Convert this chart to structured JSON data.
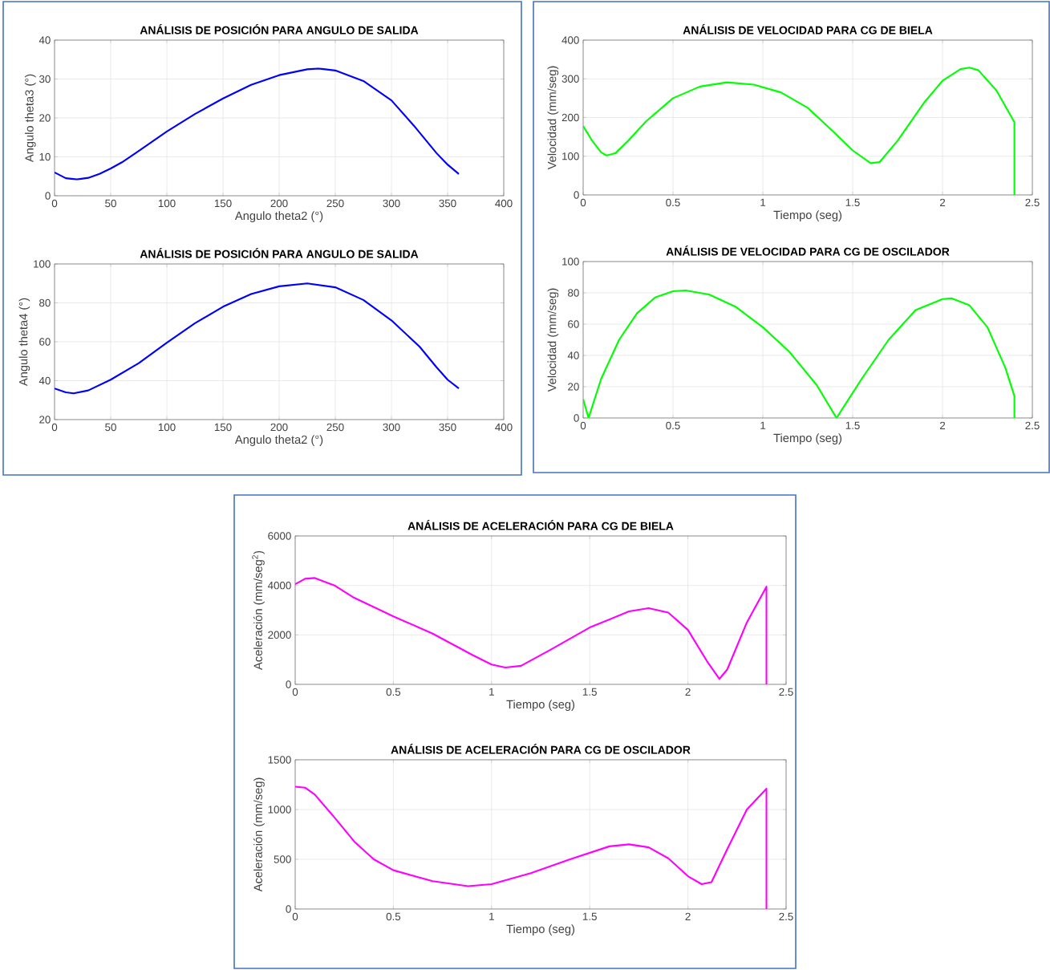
{
  "chart_data": [
    {
      "type": "line",
      "title": "ANÁLISIS DE POSICIÓN PARA ANGULO DE SALIDA",
      "xlabel": "Angulo theta2 (°)",
      "ylabel": "Angulo theta3 (°)",
      "xlim": [
        0,
        400
      ],
      "ylim": [
        0,
        40
      ],
      "xticks": [
        0,
        50,
        100,
        150,
        200,
        250,
        300,
        350,
        400
      ],
      "yticks": [
        0,
        10,
        20,
        30,
        40
      ],
      "grid": true,
      "x": [
        0,
        10,
        20,
        30,
        40,
        50,
        60,
        75,
        100,
        125,
        150,
        175,
        200,
        225,
        235,
        250,
        275,
        300,
        320,
        340,
        350,
        360
      ],
      "series": [
        {
          "color": "#0000ff",
          "values": [
            6,
            4.5,
            4.2,
            4.6,
            5.6,
            7,
            8.6,
            11.5,
            16.5,
            21,
            25,
            28.5,
            31,
            32.5,
            32.7,
            32.2,
            29.5,
            24.5,
            18,
            11,
            8,
            5.6
          ]
        }
      ]
    },
    {
      "type": "line",
      "title": "ANÁLISIS DE POSICIÓN PARA ANGULO DE SALIDA",
      "xlabel": "Angulo theta2 (°)",
      "ylabel": "Angulo theta4 (°)",
      "xlim": [
        0,
        400
      ],
      "ylim": [
        20,
        100
      ],
      "xticks": [
        0,
        50,
        100,
        150,
        200,
        250,
        300,
        350,
        400
      ],
      "yticks": [
        20,
        40,
        60,
        80,
        100
      ],
      "grid": true,
      "x": [
        0,
        10,
        17,
        30,
        50,
        75,
        100,
        125,
        150,
        175,
        200,
        225,
        250,
        275,
        300,
        325,
        340,
        350,
        360
      ],
      "series": [
        {
          "color": "#0000ff",
          "values": [
            36,
            34,
            33.5,
            35,
            40.5,
            49,
            59.5,
            69.5,
            78,
            84.5,
            88.5,
            90,
            88,
            81.5,
            71,
            57.5,
            47,
            40.5,
            36
          ]
        }
      ]
    },
    {
      "type": "line",
      "title": "ANÁLISIS DE VELOCIDAD PARA CG DE BIELA",
      "xlabel": "Tiempo (seg)",
      "ylabel": "Velocidad (mm/seg)",
      "xlim": [
        0,
        2.5
      ],
      "ylim": [
        0,
        400
      ],
      "xticks": [
        0,
        0.5,
        1,
        1.5,
        2,
        2.5
      ],
      "yticks": [
        0,
        100,
        200,
        300,
        400
      ],
      "grid": true,
      "x": [
        0,
        0.05,
        0.1,
        0.13,
        0.18,
        0.25,
        0.35,
        0.5,
        0.65,
        0.8,
        0.95,
        1.1,
        1.25,
        1.4,
        1.5,
        1.6,
        1.65,
        1.75,
        1.9,
        2.0,
        2.1,
        2.15,
        2.2,
        2.3,
        2.4,
        2.4
      ],
      "series": [
        {
          "color": "#00ff00",
          "values": [
            178,
            140,
            110,
            102,
            108,
            140,
            190,
            250,
            280,
            291,
            285,
            265,
            225,
            160,
            115,
            82,
            85,
            140,
            240,
            295,
            325,
            329,
            322,
            270,
            188,
            0
          ]
        }
      ]
    },
    {
      "type": "line",
      "title": "ANÁLISIS DE VELOCIDAD PARA CG DE OSCILADOR",
      "xlabel": "Tiempo (seg)",
      "ylabel": "Velocidad (mm/seg)",
      "xlim": [
        0,
        2.5
      ],
      "ylim": [
        0,
        100
      ],
      "xticks": [
        0,
        0.5,
        1,
        1.5,
        2,
        2.5
      ],
      "yticks": [
        0,
        20,
        40,
        60,
        80,
        100
      ],
      "grid": true,
      "x": [
        0,
        0.03,
        0.1,
        0.2,
        0.3,
        0.4,
        0.5,
        0.57,
        0.7,
        0.85,
        1.0,
        1.15,
        1.3,
        1.41,
        1.55,
        1.7,
        1.85,
        2.0,
        2.05,
        2.15,
        2.25,
        2.35,
        2.4,
        2.4
      ],
      "series": [
        {
          "color": "#00ff00",
          "values": [
            12,
            0,
            25,
            50,
            67,
            77,
            81,
            81.5,
            79,
            71,
            58,
            42,
            21,
            0,
            25,
            50,
            69,
            76,
            76.5,
            72,
            58,
            32,
            14,
            0
          ]
        }
      ]
    },
    {
      "type": "line",
      "title": "ANÁLISIS DE ACELERACIÓN PARA CG DE BIELA",
      "xlabel": "Tiempo (seg)",
      "ylabel": "Aceleración (mm/seg$^{2}$)",
      "xlim": [
        0,
        2.5
      ],
      "ylim": [
        0,
        6000
      ],
      "xticks": [
        0,
        0.5,
        1,
        1.5,
        2,
        2.5
      ],
      "yticks": [
        0,
        2000,
        4000,
        6000
      ],
      "grid": true,
      "x": [
        0,
        0.05,
        0.1,
        0.2,
        0.3,
        0.5,
        0.7,
        0.9,
        1.0,
        1.07,
        1.15,
        1.3,
        1.5,
        1.7,
        1.8,
        1.9,
        2.0,
        2.1,
        2.16,
        2.2,
        2.3,
        2.4,
        2.4
      ],
      "series": [
        {
          "color": "#ff00ff",
          "values": [
            4050,
            4270,
            4300,
            4000,
            3500,
            2750,
            2050,
            1200,
            800,
            680,
            750,
            1400,
            2300,
            2950,
            3080,
            2900,
            2200,
            900,
            220,
            600,
            2500,
            3950,
            0
          ]
        }
      ]
    },
    {
      "type": "line",
      "title": "ANÁLISIS DE ACELERACIÓN PARA CG DE OSCILADOR",
      "xlabel": "Tiempo (seg)",
      "ylabel": "Aceleración (mm/seg)",
      "xlim": [
        0,
        2.5
      ],
      "ylim": [
        0,
        1500
      ],
      "xticks": [
        0,
        0.5,
        1,
        1.5,
        2,
        2.5
      ],
      "yticks": [
        0,
        500,
        1000,
        1500
      ],
      "grid": true,
      "x": [
        0,
        0.05,
        0.1,
        0.2,
        0.3,
        0.4,
        0.5,
        0.7,
        0.88,
        1.0,
        1.2,
        1.4,
        1.6,
        1.7,
        1.8,
        1.9,
        2.0,
        2.07,
        2.12,
        2.2,
        2.3,
        2.4,
        2.4
      ],
      "series": [
        {
          "color": "#ff00ff",
          "values": [
            1230,
            1220,
            1150,
            920,
            680,
            500,
            390,
            280,
            230,
            250,
            360,
            500,
            630,
            650,
            620,
            510,
            330,
            250,
            270,
            600,
            1000,
            1210,
            0
          ]
        }
      ]
    }
  ]
}
